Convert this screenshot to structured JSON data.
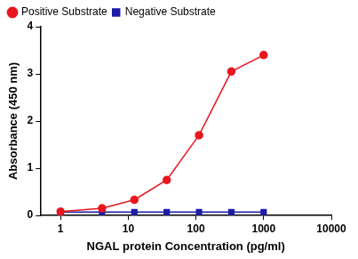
{
  "chart_data": {
    "type": "line",
    "x_label": "NGAL protein Concentration (pg/ml)",
    "y_label": "Absorbance (450 nm)",
    "x": [
      1,
      4.1,
      12.3,
      37,
      111,
      333,
      1000
    ],
    "series": [
      {
        "name": "Positive Substrate",
        "color": "#e8161e",
        "marker": "circle",
        "values": [
          0.08,
          0.15,
          0.33,
          0.75,
          1.7,
          3.05,
          3.4
        ]
      },
      {
        "name": "Negative Substrate",
        "color": "#1c1ca8",
        "marker": "square",
        "values": [
          0.07,
          0.07,
          0.07,
          0.07,
          0.07,
          0.07,
          0.07
        ]
      }
    ],
    "log": "x",
    "xlim": [
      0.5,
      10000
    ],
    "xticks": [
      1,
      10,
      100,
      1000,
      10000
    ],
    "ylim": [
      0,
      4
    ],
    "yticks": [
      0,
      1,
      2,
      3,
      4
    ],
    "grid": false,
    "legend": "top-left"
  }
}
